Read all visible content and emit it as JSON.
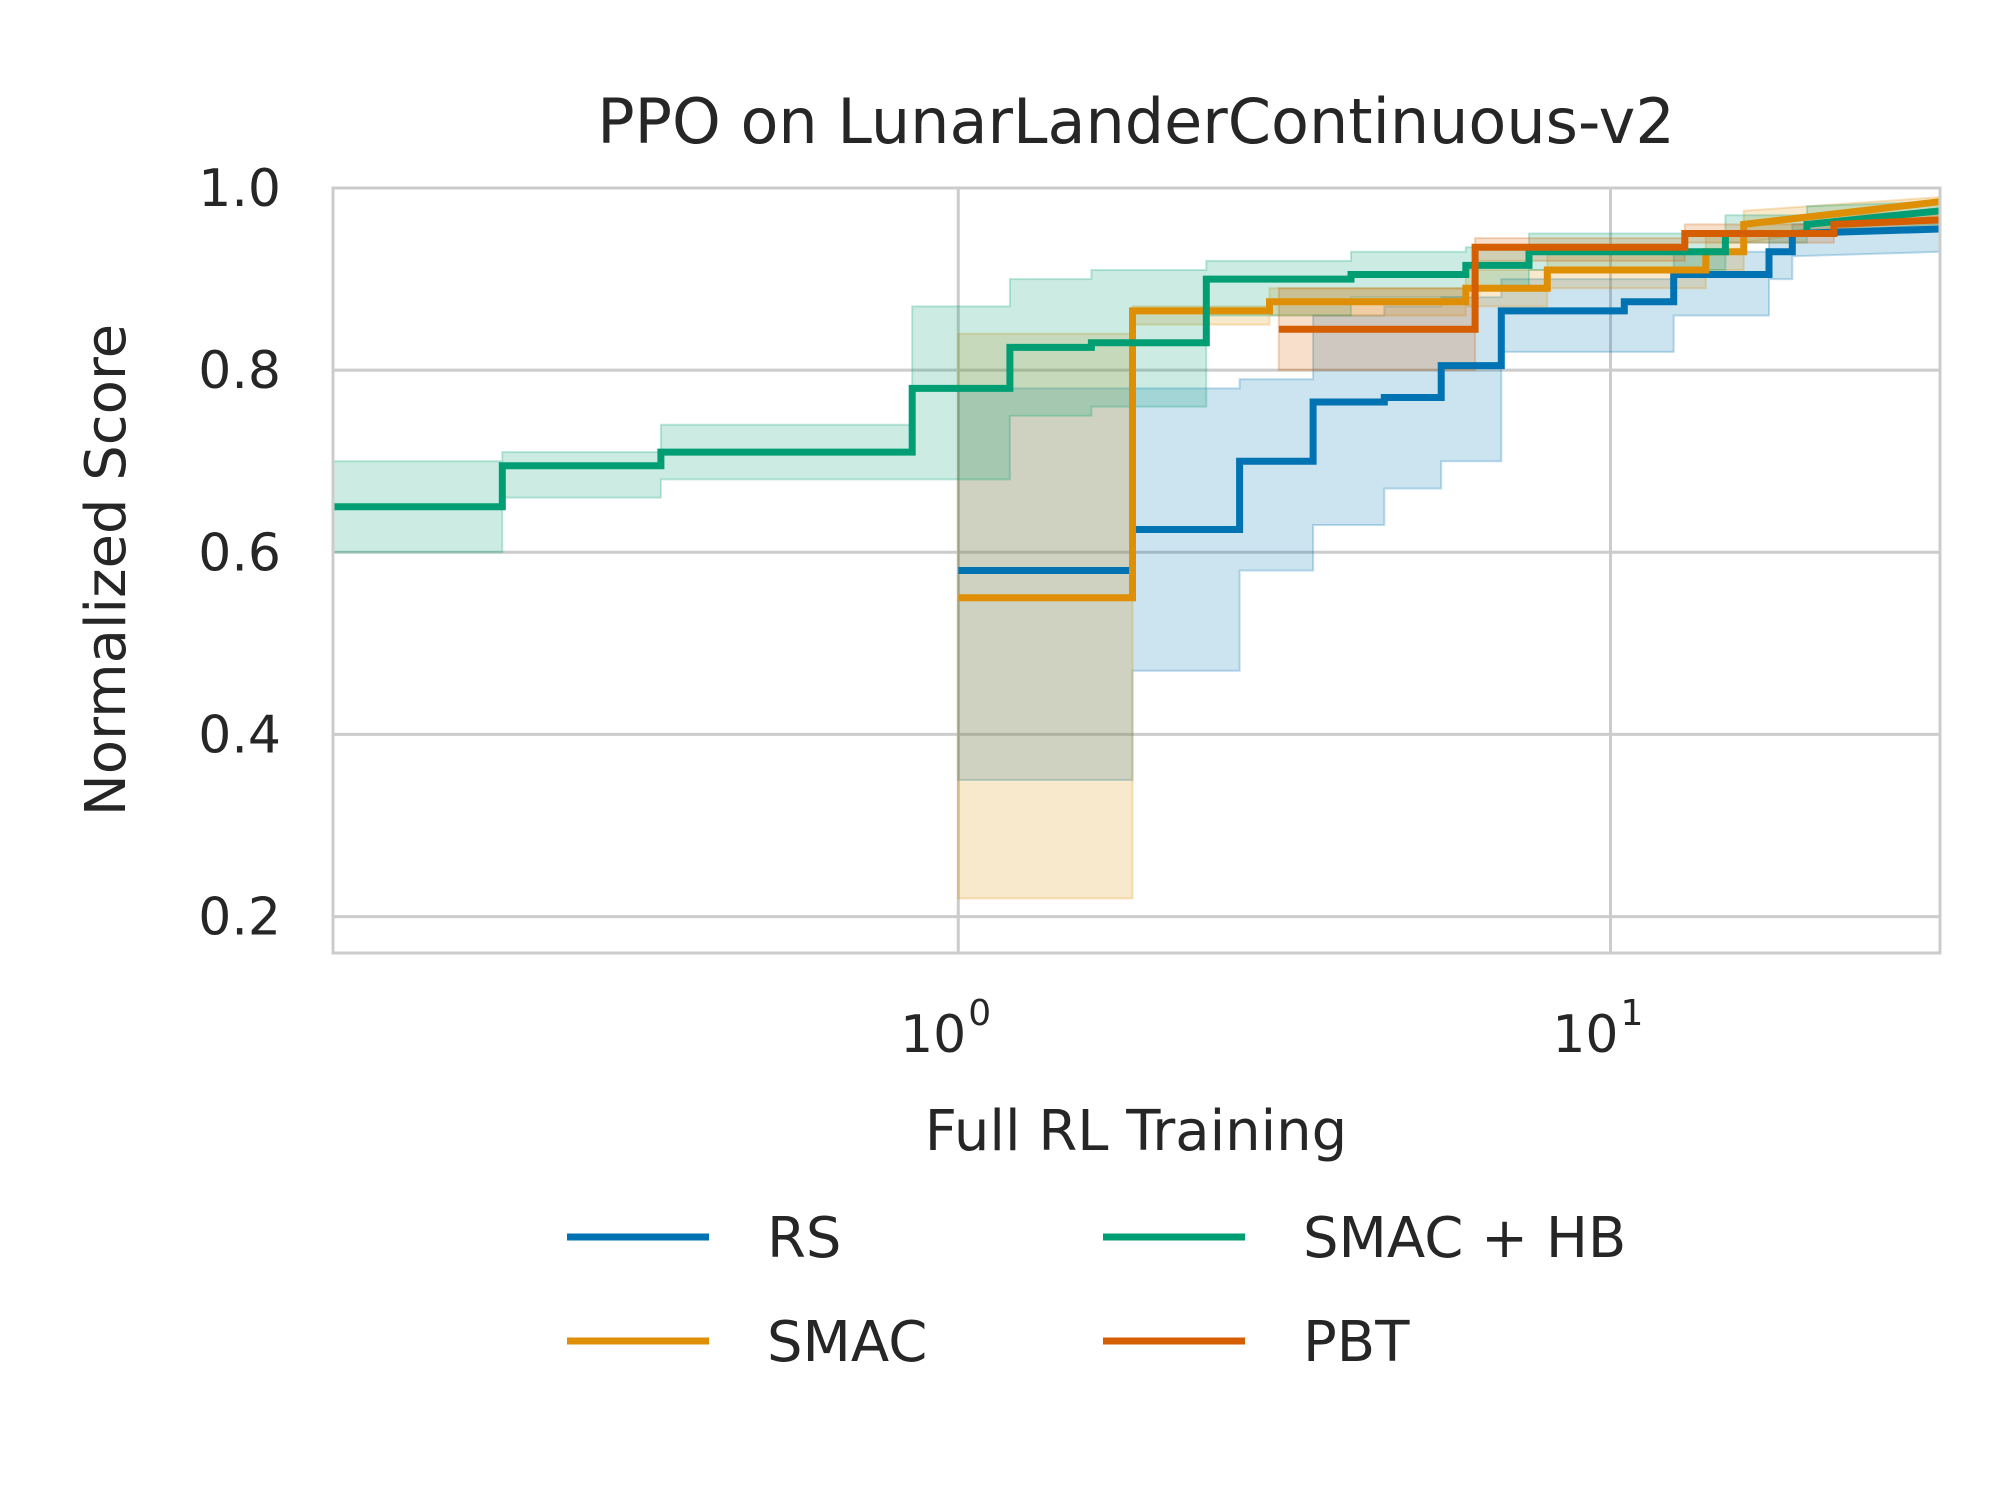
{
  "chart_data": {
    "type": "line",
    "title": "PPO on LunarLanderContinuous-v2",
    "xlabel": "Full RL Training",
    "ylabel": "Normalized Score",
    "xscale": "log",
    "xlim": [
      0.11,
      32
    ],
    "ylim": [
      0.16,
      1.0
    ],
    "grid": true,
    "legend_placement": "below",
    "yticks": [
      {
        "value": 0.2,
        "label": "0.2"
      },
      {
        "value": 0.4,
        "label": "0.4"
      },
      {
        "value": 0.6,
        "label": "0.6"
      },
      {
        "value": 0.8,
        "label": "0.8"
      },
      {
        "value": 1.0,
        "label": "1.0"
      }
    ],
    "xticks": [
      {
        "value": 1,
        "base": "10",
        "exp": "0"
      },
      {
        "value": 10,
        "base": "10",
        "exp": "1"
      }
    ],
    "series": [
      {
        "name": "RS",
        "color": "#0173b2",
        "x": [
          1.0,
          1.85,
          1.85,
          2.7,
          2.7,
          3.5,
          3.5,
          4.5,
          4.5,
          5.5,
          5.5,
          6.8,
          6.8,
          10.5,
          10.5,
          12.5,
          12.5,
          17.5,
          17.5,
          19.0,
          19.0,
          32.0
        ],
        "y": [
          0.58,
          0.58,
          0.625,
          0.625,
          0.7,
          0.7,
          0.765,
          0.765,
          0.77,
          0.77,
          0.805,
          0.805,
          0.865,
          0.865,
          0.875,
          0.875,
          0.905,
          0.905,
          0.93,
          0.93,
          0.95,
          0.955
        ],
        "lower": [
          0.35,
          0.35,
          0.47,
          0.47,
          0.58,
          0.58,
          0.63,
          0.63,
          0.67,
          0.67,
          0.7,
          0.7,
          0.82,
          0.82,
          0.82,
          0.82,
          0.86,
          0.86,
          0.9,
          0.9,
          0.925,
          0.93
        ],
        "upper": [
          0.78,
          0.78,
          0.78,
          0.78,
          0.79,
          0.79,
          0.86,
          0.86,
          0.87,
          0.87,
          0.88,
          0.88,
          0.9,
          0.9,
          0.9,
          0.9,
          0.93,
          0.93,
          0.95,
          0.95,
          0.96,
          0.965
        ]
      },
      {
        "name": "SMAC",
        "color": "#de8f05",
        "x": [
          1.0,
          1.85,
          1.85,
          3.0,
          3.0,
          6.0,
          6.0,
          8.0,
          8.0,
          14.0,
          14.0,
          16.0,
          16.0,
          32.0
        ],
        "y": [
          0.55,
          0.55,
          0.865,
          0.865,
          0.875,
          0.875,
          0.89,
          0.89,
          0.91,
          0.91,
          0.93,
          0.93,
          0.96,
          0.985
        ],
        "lower": [
          0.22,
          0.22,
          0.85,
          0.85,
          0.86,
          0.86,
          0.87,
          0.87,
          0.89,
          0.89,
          0.91,
          0.91,
          0.94,
          0.97
        ],
        "upper": [
          0.84,
          0.84,
          0.87,
          0.87,
          0.89,
          0.89,
          0.91,
          0.91,
          0.93,
          0.93,
          0.95,
          0.95,
          0.975,
          0.99
        ]
      },
      {
        "name": "SMAC + HB",
        "color": "#029e73",
        "x": [
          0.11,
          0.2,
          0.2,
          0.35,
          0.35,
          0.85,
          0.85,
          1.2,
          1.2,
          1.6,
          1.6,
          2.4,
          2.4,
          4.0,
          4.0,
          6.0,
          6.0,
          7.5,
          7.5,
          15.0,
          15.0,
          20.0,
          20.0,
          32.0
        ],
        "y": [
          0.65,
          0.65,
          0.695,
          0.695,
          0.71,
          0.71,
          0.78,
          0.78,
          0.825,
          0.825,
          0.83,
          0.83,
          0.9,
          0.9,
          0.905,
          0.905,
          0.915,
          0.915,
          0.93,
          0.93,
          0.95,
          0.95,
          0.96,
          0.975
        ],
        "lower": [
          0.6,
          0.6,
          0.66,
          0.66,
          0.68,
          0.68,
          0.68,
          0.68,
          0.75,
          0.75,
          0.76,
          0.76,
          0.86,
          0.86,
          0.88,
          0.88,
          0.89,
          0.89,
          0.91,
          0.91,
          0.94,
          0.94,
          0.95,
          0.96
        ],
        "upper": [
          0.7,
          0.7,
          0.71,
          0.71,
          0.74,
          0.74,
          0.87,
          0.87,
          0.9,
          0.9,
          0.91,
          0.91,
          0.92,
          0.92,
          0.93,
          0.93,
          0.935,
          0.935,
          0.95,
          0.95,
          0.97,
          0.97,
          0.98,
          0.985
        ]
      },
      {
        "name": "PBT",
        "color": "#d55e00",
        "x": [
          3.1,
          6.2,
          6.2,
          13.0,
          13.0,
          22.0,
          22.0,
          32.0
        ],
        "y": [
          0.845,
          0.845,
          0.935,
          0.935,
          0.95,
          0.95,
          0.96,
          0.965
        ],
        "lower": [
          0.8,
          0.8,
          0.92,
          0.92,
          0.94,
          0.94,
          0.95,
          0.955
        ],
        "upper": [
          0.89,
          0.89,
          0.945,
          0.945,
          0.96,
          0.96,
          0.97,
          0.975
        ]
      }
    ]
  }
}
